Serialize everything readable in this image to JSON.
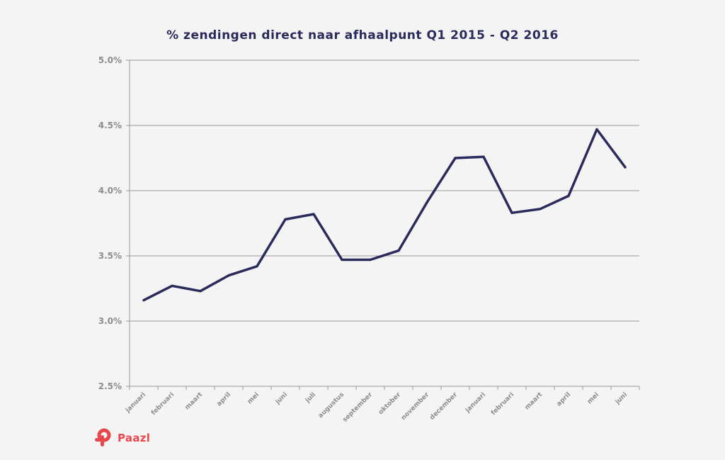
{
  "colors": {
    "background": "#f4f4f4",
    "title": "#2b2a5c",
    "line": "#2b2a5c",
    "grid": "#999999",
    "axis_text": "#8c8c8c",
    "brand": "#e8474b"
  },
  "logo": {
    "text": "Paazl",
    "icon": "paazl-p-logo-icon"
  },
  "chart_data": {
    "type": "line",
    "title": "% zendingen direct naar afhaalpunt Q1 2015 - Q2 2016",
    "xlabel": "",
    "ylabel": "",
    "categories": [
      "januari",
      "februari",
      "maart",
      "april",
      "mei",
      "juni",
      "juli",
      "augustus",
      "september",
      "oktober",
      "november",
      "december",
      "januari",
      "februari",
      "maart",
      "april",
      "mei",
      "juni"
    ],
    "series": [
      {
        "values": [
          3.16,
          3.27,
          3.23,
          3.35,
          3.42,
          3.78,
          3.82,
          3.47,
          3.47,
          3.54,
          3.91,
          4.25,
          4.26,
          3.83,
          3.86,
          3.96,
          4.47,
          4.18
        ]
      }
    ],
    "ylim": [
      2.5,
      5.0
    ],
    "yticks": [
      "2.5%",
      "3.0%",
      "3.5%",
      "4.0%",
      "4.5%",
      "5.0%"
    ],
    "grid": true,
    "legend": "none"
  }
}
